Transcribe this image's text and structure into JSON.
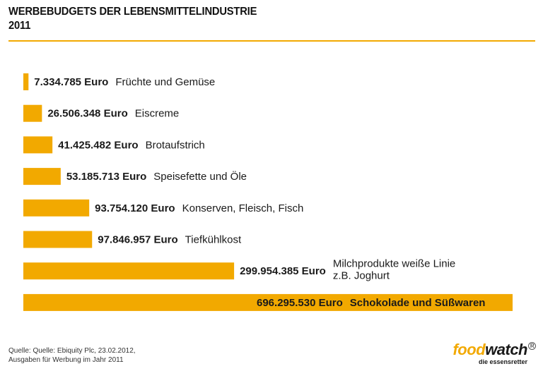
{
  "title_line1": "WERBEBUDGETS DER LEBENSMITTELINDUSTRIE",
  "title_line2": "2011",
  "source_line1": "Quelle: Quelle: Ebiquity Plc, 23.02.2012,",
  "source_line2": "Ausgaben für Werbung im Jahr 2011",
  "logo": {
    "food": "food",
    "watch": "watch",
    "registered": "R",
    "tagline": "die essensretter"
  },
  "colors": {
    "bar": "#f2a900",
    "text": "#1a1a1a"
  },
  "chart_data": {
    "type": "bar",
    "orientation": "horizontal",
    "unit": "Euro",
    "xlim": [
      0,
      696295530
    ],
    "grid": false,
    "legend": "none",
    "categories": [
      [
        "Früchte und Gemüse"
      ],
      [
        "Eiscreme"
      ],
      [
        "Brotaufstrich"
      ],
      [
        "Speisefette und Öle"
      ],
      [
        "Konserven, Fleisch, Fisch"
      ],
      [
        "Tiefkühlkost"
      ],
      [
        "Milchprodukte weiße Linie",
        "z.B. Joghurt"
      ],
      [
        "Schokolade und Süßwaren"
      ]
    ],
    "values": [
      7334785,
      26506348,
      41425482,
      53185713,
      93754120,
      97846957,
      299954385,
      696295530
    ],
    "value_labels": [
      "7.334.785 Euro",
      "26.506.348 Euro",
      "41.425.482 Euro",
      "53.185.713 Euro",
      "93.754.120 Euro",
      "97.846.957 Euro",
      "299.954.385 Euro",
      "696.295.530 Euro"
    ]
  }
}
